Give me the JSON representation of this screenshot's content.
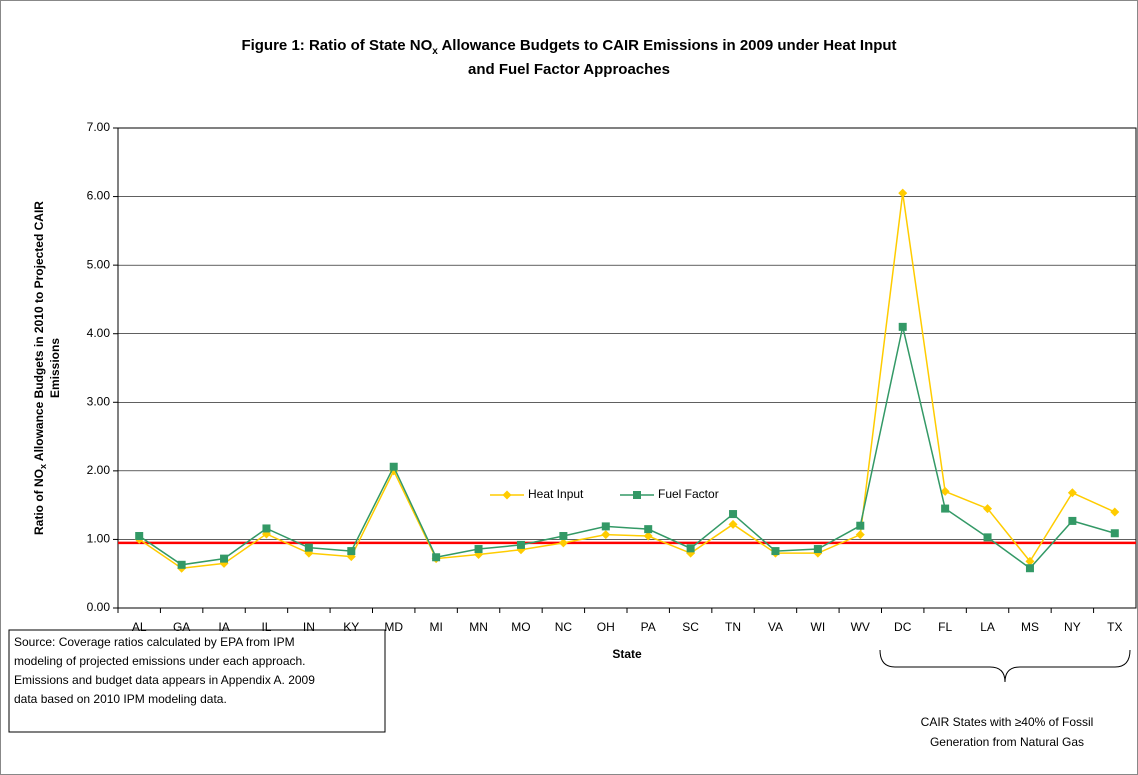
{
  "chart_data": {
    "type": "line",
    "title": [
      "Figure 1: Ratio of State NO",
      "x",
      " Allowance Budgets to CAIR Emissions in 2009 under Heat Input",
      "and Fuel Factor Approaches"
    ],
    "y_label": [
      "Ratio of NO",
      "x",
      " Allowance Budgets in 2010 to Projected CAIR",
      "Emissions"
    ],
    "x_label": "State",
    "categories": [
      "AL",
      "GA",
      "IA",
      "IL",
      "IN",
      "KY",
      "MD",
      "MI",
      "MN",
      "MO",
      "NC",
      "OH",
      "PA",
      "SC",
      "TN",
      "VA",
      "WI",
      "WV",
      "DC",
      "FL",
      "LA",
      "MS",
      "NY",
      "TX"
    ],
    "series": [
      {
        "name": "Heat Input",
        "color": "#ffcc00",
        "marker": "diamond",
        "values": [
          1.0,
          0.58,
          0.65,
          1.08,
          0.8,
          0.75,
          2.0,
          0.72,
          0.78,
          0.85,
          0.95,
          1.07,
          1.05,
          0.8,
          1.22,
          0.8,
          0.8,
          1.07,
          6.05,
          1.7,
          1.45,
          0.68,
          1.68,
          1.4
        ]
      },
      {
        "name": "Fuel Factor",
        "color": "#339966",
        "marker": "square",
        "values": [
          1.05,
          0.63,
          0.72,
          1.16,
          0.88,
          0.83,
          2.06,
          0.74,
          0.86,
          0.92,
          1.05,
          1.19,
          1.15,
          0.87,
          1.37,
          0.83,
          0.86,
          1.2,
          4.1,
          1.45,
          1.03,
          0.58,
          1.27,
          1.09
        ]
      }
    ],
    "ylim": [
      0,
      7
    ],
    "yticks": [
      {
        "value": 0,
        "label": "0.00"
      },
      {
        "value": 1,
        "label": "1.00"
      },
      {
        "value": 2,
        "label": "2.00"
      },
      {
        "value": 3,
        "label": "3.00"
      },
      {
        "value": 4,
        "label": "4.00"
      },
      {
        "value": 5,
        "label": "5.00"
      },
      {
        "value": 6,
        "label": "6.00"
      },
      {
        "value": 7,
        "label": "7.00"
      }
    ],
    "grid": true,
    "reference_line": {
      "value": 0.95,
      "color": "#ff0000"
    },
    "source": [
      "Source: Coverage ratios calculated by EPA from IPM",
      "modeling of projected emissions under each approach.",
      "Emissions and budget data appears in Appendix A.  2009",
      "data based on 2010 IPM modeling data."
    ],
    "bracket_note": [
      "CAIR States with ≥40% of Fossil",
      "Generation from Natural Gas"
    ]
  }
}
